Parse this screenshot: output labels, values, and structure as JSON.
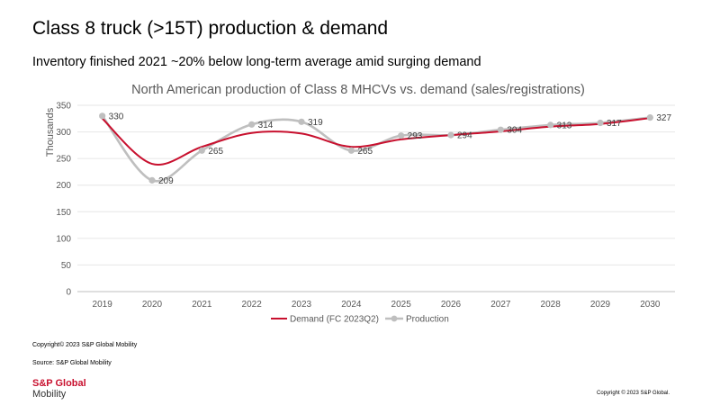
{
  "header": {
    "title": "Class 8 truck (>15T) production & demand",
    "subtitle": "Inventory finished 2021 ~20% below long-term average amid surging demand"
  },
  "chart_data": {
    "type": "line",
    "title": "North American production of Class 8 MHCVs vs. demand (sales/registrations)",
    "ylabel": "Thousands",
    "xlabel": "",
    "categories": [
      "2019",
      "2020",
      "2021",
      "2022",
      "2023",
      "2024",
      "2025",
      "2026",
      "2027",
      "2028",
      "2029",
      "2030"
    ],
    "ylim": [
      0,
      350
    ],
    "yticks": [
      0,
      50,
      100,
      150,
      200,
      250,
      300,
      350
    ],
    "grid": "horizontal",
    "legend_position": "bottom",
    "series": [
      {
        "name": "Demand (FC 2023Q2)",
        "color": "#c8102e",
        "values": [
          325,
          240,
          272,
          298,
          297,
          272,
          286,
          294,
          301,
          310,
          315,
          326
        ],
        "labels": []
      },
      {
        "name": "Production",
        "color": "#bfbfbf",
        "values": [
          330,
          209,
          265,
          314,
          319,
          265,
          293,
          294,
          304,
          313,
          317,
          327
        ],
        "labels": [
          "330",
          "209",
          "265",
          "314",
          "319",
          "265",
          "293",
          "294",
          "304",
          "313",
          "317",
          "327"
        ]
      }
    ]
  },
  "footer": {
    "copyright_left": "Copyright© 2023 S&P Global Mobility",
    "source": "Source: S&P Global Mobility",
    "copyright_right": "Copyright © 2023 S&P Global.",
    "logo_top": "S&P Global",
    "logo_bottom": "Mobility"
  }
}
